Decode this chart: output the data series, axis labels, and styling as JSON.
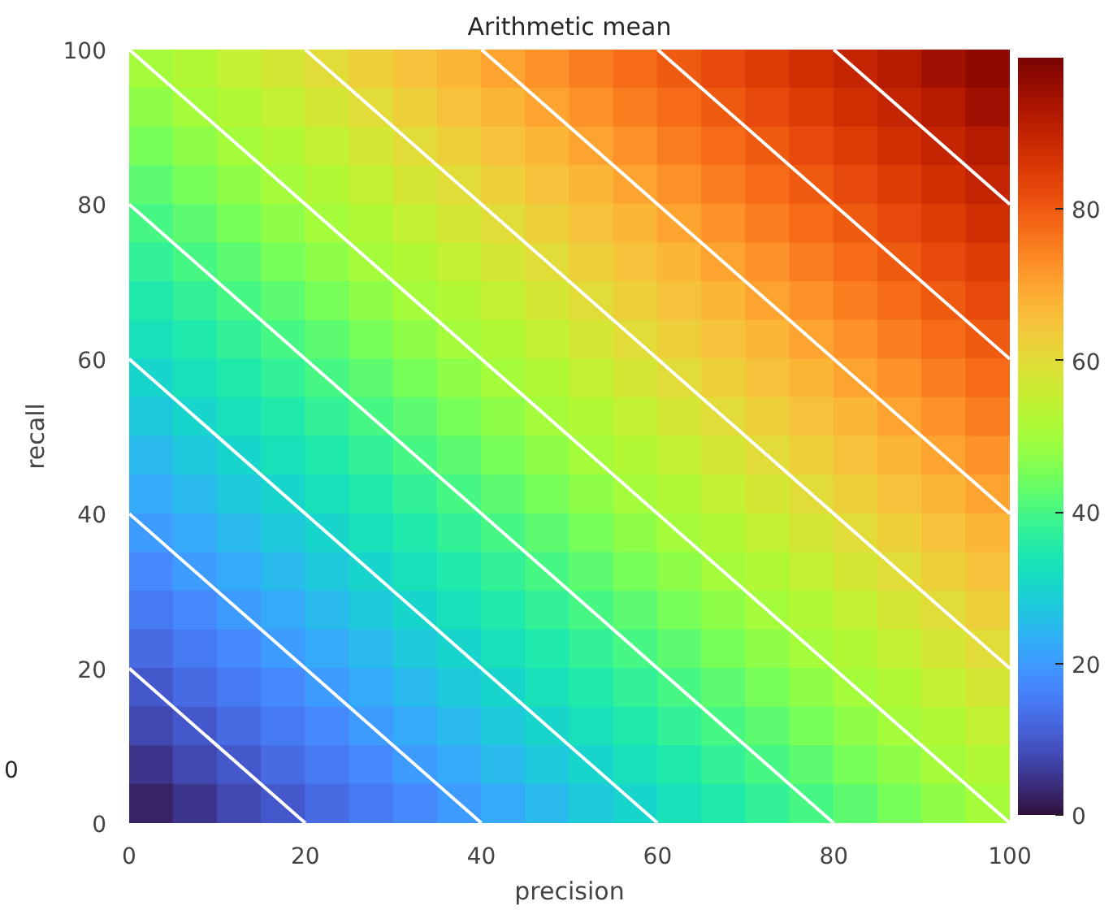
{
  "chart_data": {
    "type": "heatmap",
    "title": "Arithmetic mean",
    "xlabel": "precision",
    "ylabel": "recall",
    "x": [
      2.5,
      7.5,
      12.5,
      17.5,
      22.5,
      27.5,
      32.5,
      37.5,
      42.5,
      47.5,
      52.5,
      57.5,
      62.5,
      67.5,
      72.5,
      77.5,
      82.5,
      87.5,
      92.5,
      97.5
    ],
    "y": [
      97.5,
      92.5,
      87.5,
      82.5,
      77.5,
      72.5,
      67.5,
      62.5,
      57.5,
      52.5,
      47.5,
      42.5,
      37.5,
      32.5,
      27.5,
      22.5,
      17.5,
      12.5,
      7.5,
      2.5
    ],
    "cells": [
      [
        50,
        52.5,
        55,
        57.5,
        60,
        62.5,
        65,
        67.5,
        70,
        72.5,
        75,
        77.5,
        80,
        82.5,
        85,
        87.5,
        90,
        92.5,
        95,
        97.5
      ],
      [
        47.5,
        50,
        52.5,
        55,
        57.5,
        60,
        62.5,
        65,
        67.5,
        70,
        72.5,
        75,
        77.5,
        80,
        82.5,
        85,
        87.5,
        90,
        92.5,
        95
      ],
      [
        45,
        47.5,
        50,
        52.5,
        55,
        57.5,
        60,
        62.5,
        65,
        67.5,
        70,
        72.5,
        75,
        77.5,
        80,
        82.5,
        85,
        87.5,
        90,
        92.5
      ],
      [
        42.5,
        45,
        47.5,
        50,
        52.5,
        55,
        57.5,
        60,
        62.5,
        65,
        67.5,
        70,
        72.5,
        75,
        77.5,
        80,
        82.5,
        85,
        87.5,
        90
      ],
      [
        40,
        42.5,
        45,
        47.5,
        50,
        52.5,
        55,
        57.5,
        60,
        62.5,
        65,
        67.5,
        70,
        72.5,
        75,
        77.5,
        80,
        82.5,
        85,
        87.5
      ],
      [
        37.5,
        40,
        42.5,
        45,
        47.5,
        50,
        52.5,
        55,
        57.5,
        60,
        62.5,
        65,
        67.5,
        70,
        72.5,
        75,
        77.5,
        80,
        82.5,
        85
      ],
      [
        35,
        37.5,
        40,
        42.5,
        45,
        47.5,
        50,
        52.5,
        55,
        57.5,
        60,
        62.5,
        65,
        67.5,
        70,
        72.5,
        75,
        77.5,
        80,
        82.5
      ],
      [
        32.5,
        35,
        37.5,
        40,
        42.5,
        45,
        47.5,
        50,
        52.5,
        55,
        57.5,
        60,
        62.5,
        65,
        67.5,
        70,
        72.5,
        75,
        77.5,
        80
      ],
      [
        30,
        32.5,
        35,
        37.5,
        40,
        42.5,
        45,
        47.5,
        50,
        52.5,
        55,
        57.5,
        60,
        62.5,
        65,
        67.5,
        70,
        72.5,
        75,
        77.5
      ],
      [
        27.5,
        30,
        32.5,
        35,
        37.5,
        40,
        42.5,
        45,
        47.5,
        50,
        52.5,
        55,
        57.5,
        60,
        62.5,
        65,
        67.5,
        70,
        72.5,
        75
      ],
      [
        25,
        27.5,
        30,
        32.5,
        35,
        37.5,
        40,
        42.5,
        45,
        47.5,
        50,
        52.5,
        55,
        57.5,
        60,
        62.5,
        65,
        67.5,
        70,
        72.5
      ],
      [
        22.5,
        25,
        27.5,
        30,
        32.5,
        35,
        37.5,
        40,
        42.5,
        45,
        47.5,
        50,
        52.5,
        55,
        57.5,
        60,
        62.5,
        65,
        67.5,
        70
      ],
      [
        20,
        22.5,
        25,
        27.5,
        30,
        32.5,
        35,
        37.5,
        40,
        42.5,
        45,
        47.5,
        50,
        52.5,
        55,
        57.5,
        60,
        62.5,
        65,
        67.5
      ],
      [
        17.5,
        20,
        22.5,
        25,
        27.5,
        30,
        32.5,
        35,
        37.5,
        40,
        42.5,
        45,
        47.5,
        50,
        52.5,
        55,
        57.5,
        60,
        62.5,
        65
      ],
      [
        15,
        17.5,
        20,
        22.5,
        25,
        27.5,
        30,
        32.5,
        35,
        37.5,
        40,
        42.5,
        45,
        47.5,
        50,
        52.5,
        55,
        57.5,
        60,
        62.5
      ],
      [
        12.5,
        15,
        17.5,
        20,
        22.5,
        25,
        27.5,
        30,
        32.5,
        35,
        37.5,
        40,
        42.5,
        45,
        47.5,
        50,
        52.5,
        55,
        57.5,
        60
      ],
      [
        10,
        12.5,
        15,
        17.5,
        20,
        22.5,
        25,
        27.5,
        30,
        32.5,
        35,
        37.5,
        40,
        42.5,
        45,
        47.5,
        50,
        52.5,
        55,
        57.5
      ],
      [
        7.5,
        10,
        12.5,
        15,
        17.5,
        20,
        22.5,
        25,
        27.5,
        30,
        32.5,
        35,
        37.5,
        40,
        42.5,
        45,
        47.5,
        50,
        52.5,
        55
      ],
      [
        5,
        7.5,
        10,
        12.5,
        15,
        17.5,
        20,
        22.5,
        25,
        27.5,
        30,
        32.5,
        35,
        37.5,
        40,
        42.5,
        45,
        47.5,
        50,
        52.5
      ],
      [
        2.5,
        5,
        7.5,
        10,
        12.5,
        15,
        17.5,
        20,
        22.5,
        25,
        27.5,
        30,
        32.5,
        35,
        37.5,
        40,
        42.5,
        45,
        47.5,
        50
      ]
    ],
    "series": [
      {
        "type": "line",
        "color": "#ffffff",
        "x": [
          0,
          20
        ],
        "values": [
          20,
          0
        ]
      },
      {
        "type": "line",
        "color": "#ffffff",
        "x": [
          0,
          40
        ],
        "values": [
          40,
          0
        ]
      },
      {
        "type": "line",
        "color": "#ffffff",
        "x": [
          0,
          60
        ],
        "values": [
          60,
          0
        ]
      },
      {
        "type": "line",
        "color": "#ffffff",
        "x": [
          0,
          80
        ],
        "values": [
          80,
          0
        ]
      },
      {
        "type": "line",
        "color": "#ffffff",
        "x": [
          0,
          100
        ],
        "values": [
          100,
          0
        ]
      },
      {
        "type": "line",
        "color": "#ffffff",
        "x": [
          20,
          100
        ],
        "values": [
          100,
          20
        ]
      },
      {
        "type": "line",
        "color": "#ffffff",
        "x": [
          40,
          100
        ],
        "values": [
          100,
          40
        ]
      },
      {
        "type": "line",
        "color": "#ffffff",
        "x": [
          60,
          100
        ],
        "values": [
          100,
          60
        ]
      },
      {
        "type": "line",
        "color": "#ffffff",
        "x": [
          80,
          100
        ],
        "values": [
          100,
          80
        ]
      }
    ],
    "xlim": [
      0,
      100
    ],
    "ylim": [
      0,
      100
    ],
    "xticks": [
      0,
      20,
      40,
      60,
      80,
      100
    ],
    "yticks": [
      0,
      20,
      40,
      60,
      80,
      100
    ],
    "clim": [
      0,
      100
    ],
    "cticks": [
      0,
      20,
      40,
      60,
      80
    ],
    "annotations": [
      "0"
    ]
  }
}
